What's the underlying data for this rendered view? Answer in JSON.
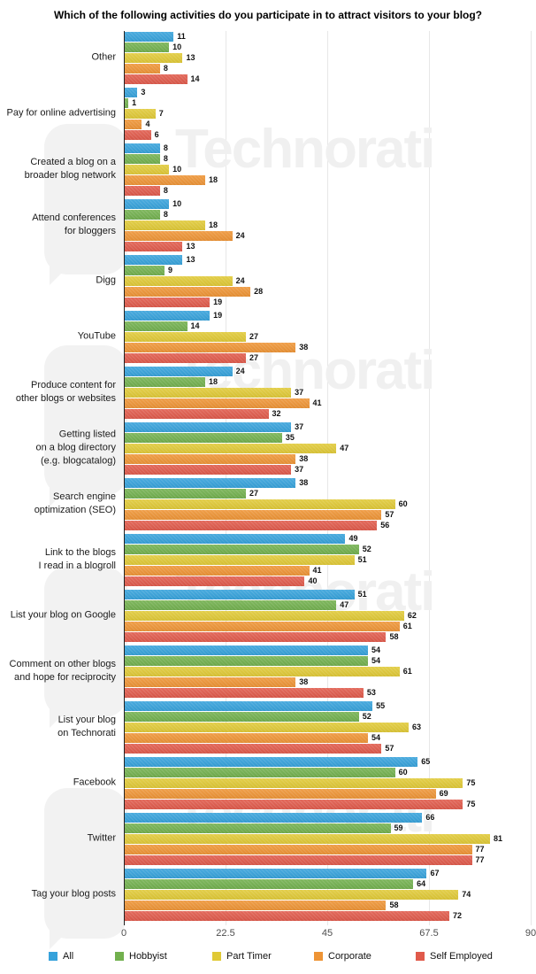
{
  "title": "Which of the following activities do you participate in to attract visitors to your blog?",
  "watermark": {
    "text": "Technorati"
  },
  "chart_data": {
    "type": "bar",
    "orientation": "horizontal",
    "title": "Which of the following activities do you participate in to attract visitors to your blog?",
    "xlabel": "",
    "ylabel": "",
    "xlim": [
      0,
      90
    ],
    "x_ticks": [
      "0",
      "22.5",
      "45",
      "67.5",
      "90"
    ],
    "grid": true,
    "legend_position": "bottom",
    "categories": [
      "Other",
      "Pay for online advertising",
      "Created a blog on a\nbroader blog network",
      "Attend conferences\nfor bloggers",
      "Digg",
      "YouTube",
      "Produce content for\nother blogs or websites",
      "Getting listed\non a blog directory\n(e.g. blogcatalog)",
      "Search engine\noptimization (SEO)",
      "Link to the blogs\nI read in a blogroll",
      "List your blog on Google",
      "Comment on other blogs\nand hope for reciprocity",
      "List your blog\non Technorati",
      "Facebook",
      "Twitter",
      "Tag your blog posts"
    ],
    "series": [
      {
        "name": "All",
        "color": "#36a2db",
        "values": [
          11,
          3,
          8,
          10,
          13,
          19,
          24,
          37,
          38,
          49,
          51,
          54,
          55,
          65,
          66,
          67
        ]
      },
      {
        "name": "Hobbyist",
        "color": "#72b04e",
        "values": [
          10,
          1,
          8,
          8,
          9,
          14,
          18,
          35,
          27,
          52,
          47,
          54,
          52,
          60,
          59,
          64
        ]
      },
      {
        "name": "Part Timer",
        "color": "#e0c936",
        "values": [
          13,
          7,
          10,
          18,
          24,
          27,
          37,
          47,
          60,
          51,
          62,
          61,
          63,
          75,
          81,
          74
        ]
      },
      {
        "name": "Corporate",
        "color": "#ee9435",
        "values": [
          8,
          4,
          18,
          24,
          28,
          38,
          41,
          38,
          57,
          41,
          61,
          38,
          54,
          69,
          77,
          58
        ]
      },
      {
        "name": "Self Employed",
        "color": "#e05a4b",
        "values": [
          14,
          6,
          8,
          13,
          19,
          27,
          32,
          37,
          56,
          40,
          58,
          53,
          57,
          75,
          77,
          72
        ]
      }
    ]
  }
}
